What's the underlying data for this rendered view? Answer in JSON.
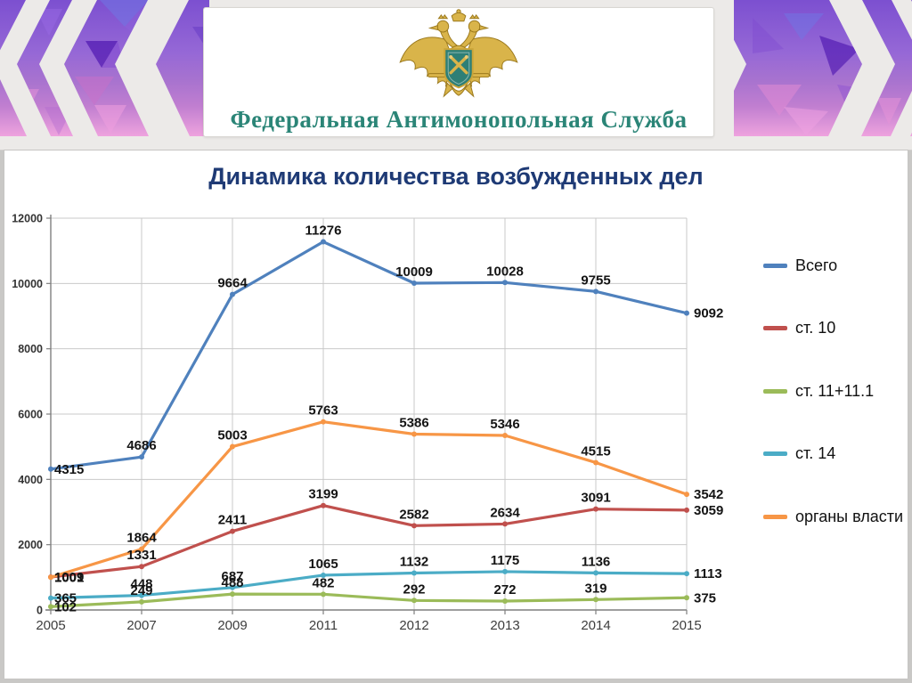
{
  "header": {
    "org_name": "Федеральная Антимонопольная Служба",
    "emblem_icon": "fas-double-headed-eagle"
  },
  "slide": {
    "title": "Динамика количества возбужденных дел"
  },
  "chart_data": {
    "type": "line",
    "title": "Динамика количества возбужденных дел",
    "categories": [
      "2005",
      "2007",
      "2009",
      "2011",
      "2012",
      "2013",
      "2014",
      "2015"
    ],
    "series": [
      {
        "name": "Всего",
        "color": "#4F81BD",
        "values": [
          4315,
          4686,
          9664,
          11276,
          10009,
          10028,
          9755,
          9092
        ]
      },
      {
        "name": "ст. 10",
        "color": "#C0504D",
        "values": [
          1009,
          1331,
          2411,
          3199,
          2582,
          2634,
          3091,
          3059
        ]
      },
      {
        "name": "ст. 11+11.1",
        "color": "#9BBB59",
        "values": [
          102,
          249,
          488,
          482,
          292,
          272,
          319,
          375
        ]
      },
      {
        "name": "ст. 14",
        "color": "#4BACC6",
        "values": [
          365,
          448,
          687,
          1065,
          1132,
          1175,
          1136,
          1113
        ]
      },
      {
        "name": "органы власти",
        "color": "#F79646",
        "values": [
          1001,
          1864,
          5003,
          5763,
          5386,
          5346,
          4515,
          3542
        ]
      }
    ],
    "xlabel": "",
    "ylabel": "",
    "ylim": [
      0,
      12000
    ],
    "ytick_step": 2000,
    "grid": true,
    "data_labels": true,
    "legend_position": "right",
    "grid_color": "#c9c9c9",
    "axis_color": "#7f7f7f",
    "label_color": "#141414"
  },
  "colors": {
    "title": "#1e3a75",
    "header_text": "#2b8577",
    "accent_purple": "#9668d6",
    "accent_pink": "#eea3de",
    "emblem_gold": "#d9b44a",
    "emblem_teal": "#2e7f76"
  }
}
